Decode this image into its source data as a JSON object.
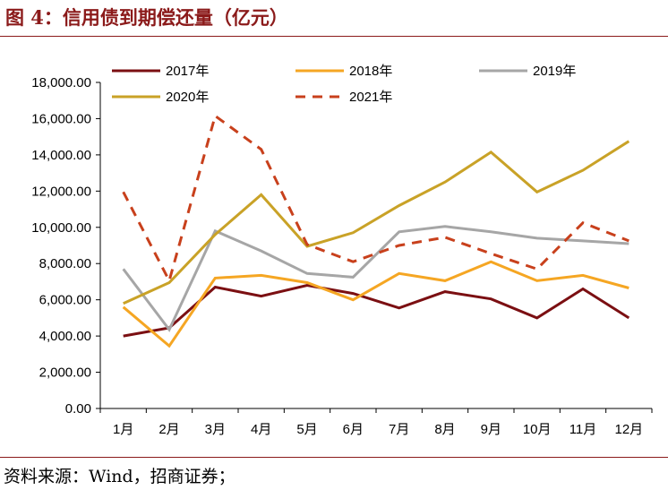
{
  "header": {
    "title": "图 4：信用债到期偿还量（亿元）"
  },
  "footer": {
    "source": "资料来源：Wind，招商证券；"
  },
  "chart_data": {
    "type": "line",
    "title": "",
    "xlabel": "",
    "ylabel": "",
    "categories": [
      "1月",
      "2月",
      "3月",
      "4月",
      "5月",
      "6月",
      "7月",
      "8月",
      "9月",
      "10月",
      "11月",
      "12月"
    ],
    "ylim": [
      0,
      18000
    ],
    "y_ticks": [
      "0.00",
      "2,000.00",
      "4,000.00",
      "6,000.00",
      "8,000.00",
      "10,000.00",
      "12,000.00",
      "14,000.00",
      "16,000.00",
      "18,000.00"
    ],
    "grid": false,
    "legend_position": "top",
    "series": [
      {
        "name": "2017年",
        "color": "#7B0F12",
        "dashed": false,
        "values": [
          4000,
          4450,
          6700,
          6200,
          6800,
          6350,
          5550,
          6450,
          6050,
          5000,
          6600,
          5000
        ]
      },
      {
        "name": "2018年",
        "color": "#F5A623",
        "dashed": false,
        "values": [
          5600,
          3450,
          7200,
          7350,
          6950,
          6000,
          7450,
          7050,
          8100,
          7050,
          7350,
          6650
        ]
      },
      {
        "name": "2019年",
        "color": "#A6A6A6",
        "dashed": false,
        "values": [
          7700,
          4350,
          9800,
          8700,
          7450,
          7250,
          9750,
          10050,
          9750,
          9400,
          9250,
          9100
        ]
      },
      {
        "name": "2020年",
        "color": "#C9A227",
        "dashed": false,
        "values": [
          5800,
          6950,
          9600,
          11800,
          8950,
          9700,
          11200,
          12500,
          14150,
          11950,
          13150,
          14750
        ]
      },
      {
        "name": "2021年",
        "color": "#C8401C",
        "dashed": true,
        "values": [
          11950,
          7050,
          16150,
          14300,
          9050,
          8100,
          9000,
          9450,
          8550,
          7700,
          10250,
          9250
        ]
      }
    ]
  }
}
